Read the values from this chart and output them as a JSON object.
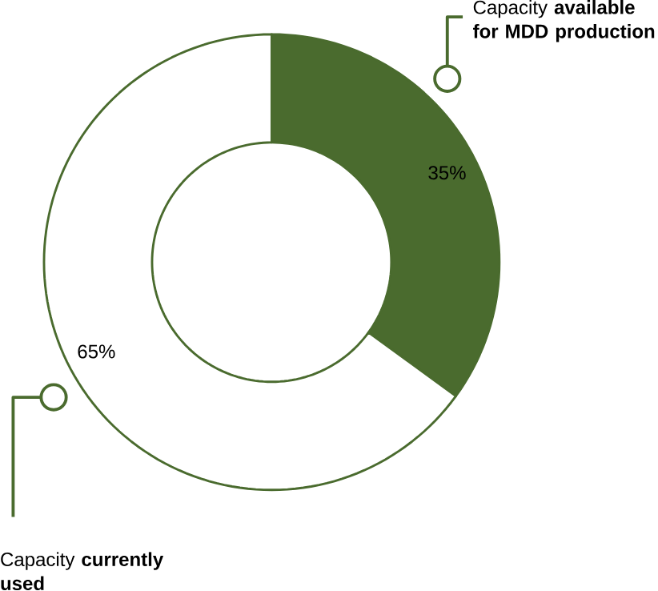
{
  "chart_data": {
    "type": "donut",
    "categories": [
      "Capacity **available for MDD production**",
      "Capacity **currently used**"
    ],
    "values": [
      35,
      65
    ],
    "colors": [
      "#4a6b2e",
      "#ffffff"
    ],
    "value_labels": [
      "35%",
      "65%"
    ]
  }
}
